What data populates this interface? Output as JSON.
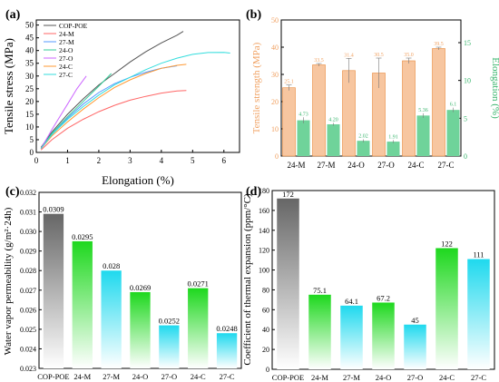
{
  "colors": {
    "axis": "#000000",
    "bar_orange": "#f7c6a0",
    "bar_orange_edge": "#e8893a",
    "bar_green": "#6fd39a",
    "label_orange": "#f0a060",
    "label_green": "#38b56c",
    "gray": "#555555",
    "green": "#22dd22",
    "cyan": "#22ddee",
    "magenta": "#dd55dd",
    "line_24M": "#ff6666",
    "line_27M": "#5599ff",
    "line_24O": "#33cc99",
    "line_27O": "#cc66ff",
    "line_24C": "#ff9933",
    "line_27C": "#33dddd"
  },
  "chart_data": [
    {
      "panel": "(a)",
      "type": "line",
      "xlabel": "Elongation (%)",
      "ylabel": "Tensile stress (MPa)",
      "xlim": [
        0,
        6.5
      ],
      "ylim": [
        0,
        52
      ],
      "xticks": [
        "0",
        "1",
        "2",
        "3",
        "4",
        "5",
        "6"
      ],
      "yticks": [
        "0",
        "5",
        "10",
        "15",
        "20",
        "25",
        "30",
        "35",
        "40",
        "45",
        "50"
      ],
      "legend": "top-left",
      "series": [
        {
          "name": "COP-POE",
          "color": "#555555",
          "x": [
            0.15,
            0.5,
            1,
            1.5,
            2,
            2.5,
            3,
            3.5,
            4,
            4.5,
            4.7
          ],
          "y": [
            2,
            8,
            15,
            21,
            26.5,
            31,
            35.5,
            39.5,
            43,
            46,
            47.5
          ]
        },
        {
          "name": "24-M",
          "color": "#ff6666",
          "x": [
            0.15,
            0.5,
            1,
            1.5,
            2,
            2.5,
            3,
            3.5,
            4,
            4.5,
            4.8
          ],
          "y": [
            1,
            5,
            9.5,
            13,
            16,
            18.5,
            20.5,
            22,
            23.3,
            24.1,
            24.3
          ]
        },
        {
          "name": "27-M",
          "color": "#5599ff",
          "x": [
            0.15,
            0.5,
            1,
            1.5,
            2,
            2.5,
            3,
            3.5,
            4,
            4.5
          ],
          "y": [
            1.5,
            7,
            13.5,
            19,
            23.5,
            27,
            29.5,
            31.5,
            33,
            34
          ]
        },
        {
          "name": "24-O",
          "color": "#33cc99",
          "x": [
            0.15,
            0.5,
            1,
            1.5,
            2,
            2.4
          ],
          "y": [
            1.5,
            7.5,
            14,
            20,
            26,
            31
          ]
        },
        {
          "name": "27-O",
          "color": "#cc66ff",
          "x": [
            0.15,
            0.5,
            1,
            1.3,
            1.6
          ],
          "y": [
            1.5,
            9,
            19,
            25,
            30
          ]
        },
        {
          "name": "24-C",
          "color": "#ff9933",
          "x": [
            0.15,
            0.5,
            1,
            1.5,
            2,
            2.5,
            3,
            3.5,
            4,
            4.5,
            4.8
          ],
          "y": [
            1.5,
            6.5,
            12,
            17,
            21.5,
            25.5,
            28.5,
            31,
            33,
            34.2,
            34.6
          ]
        },
        {
          "name": "27-C",
          "color": "#33dddd",
          "x": [
            0.15,
            0.5,
            1,
            1.5,
            2,
            2.5,
            3,
            3.5,
            4,
            4.5,
            5,
            5.5,
            6,
            6.2
          ],
          "y": [
            1.5,
            7,
            13,
            18,
            22.5,
            26.5,
            29.5,
            32.5,
            35,
            37,
            38.5,
            39.2,
            39.3,
            39
          ]
        }
      ]
    },
    {
      "panel": "(b)",
      "type": "bar",
      "categories": [
        "24-M",
        "27-M",
        "24-O",
        "27-O",
        "24-C",
        "27-C"
      ],
      "ylabel": "Tensile strength (MPa)",
      "y2label": "Elongation (%)",
      "ylim": [
        0,
        50
      ],
      "y2lim": [
        0,
        18
      ],
      "yticks": [
        "0",
        "10",
        "20",
        "30",
        "40",
        "50"
      ],
      "y2ticks": [
        "0",
        "5",
        "10",
        "15"
      ],
      "series": [
        {
          "name": "Tensile strength (MPa)",
          "axis": "left",
          "values": [
            25.1,
            33.5,
            31.4,
            30.5,
            35.0,
            39.5
          ],
          "errors": [
            1,
            0.5,
            4.5,
            5.5,
            1,
            0.5
          ],
          "labels": [
            "25.1",
            "33.5",
            "31.4",
            "30.5",
            "35.0",
            "39.5"
          ]
        },
        {
          "name": "Elongation (%)",
          "axis": "right",
          "values": [
            4.73,
            4.2,
            2.02,
            1.91,
            5.36,
            6.1
          ],
          "errors": [
            0.4,
            0.2,
            0.2,
            0.2,
            0.3,
            0.3
          ],
          "labels": [
            "4.73",
            "4.20",
            "2.02",
            "1.91",
            "5.36",
            "6.1"
          ]
        }
      ]
    },
    {
      "panel": "(c)",
      "type": "bar",
      "categories": [
        "COP-POE",
        "24-M",
        "27-M",
        "24-O",
        "27-O",
        "24-C",
        "27-C"
      ],
      "values": [
        0.0309,
        0.0295,
        0.028,
        0.0269,
        0.0252,
        0.0271,
        0.0248
      ],
      "labels": [
        "0.0309",
        "0.0295",
        "0.028",
        "0.0269",
        "0.0252",
        "0.0271",
        "0.0248"
      ],
      "colors": [
        "gray",
        "green",
        "cyan",
        "green",
        "cyan",
        "green",
        "cyan"
      ],
      "ylabel": "Water vapor permeability (g/m²·24h)",
      "ylim": [
        0.023,
        0.032
      ],
      "yticks": [
        "0.023",
        "0.024",
        "0.025",
        "0.026",
        "0.027",
        "0.028",
        "0.029",
        "0.030",
        "0.031",
        "0.032"
      ]
    },
    {
      "panel": "(d)",
      "type": "bar",
      "categories": [
        "COP-POE",
        "24-M",
        "27-M",
        "24-O",
        "27-O",
        "24-C",
        "27-C"
      ],
      "values": [
        172,
        75.1,
        64.1,
        67.2,
        45,
        122,
        111
      ],
      "labels": [
        "172",
        "75.1",
        "64.1",
        "67.2",
        "45",
        "122",
        "111"
      ],
      "colors": [
        "gray",
        "green",
        "cyan",
        "green",
        "cyan",
        "green",
        "cyan"
      ],
      "ylabel": "Coefficient of thermal expansion (ppm/°C)",
      "ylim": [
        0,
        180
      ],
      "yticks": [
        "0",
        "20",
        "40",
        "60",
        "80",
        "100",
        "120",
        "140",
        "160",
        "180"
      ]
    }
  ]
}
